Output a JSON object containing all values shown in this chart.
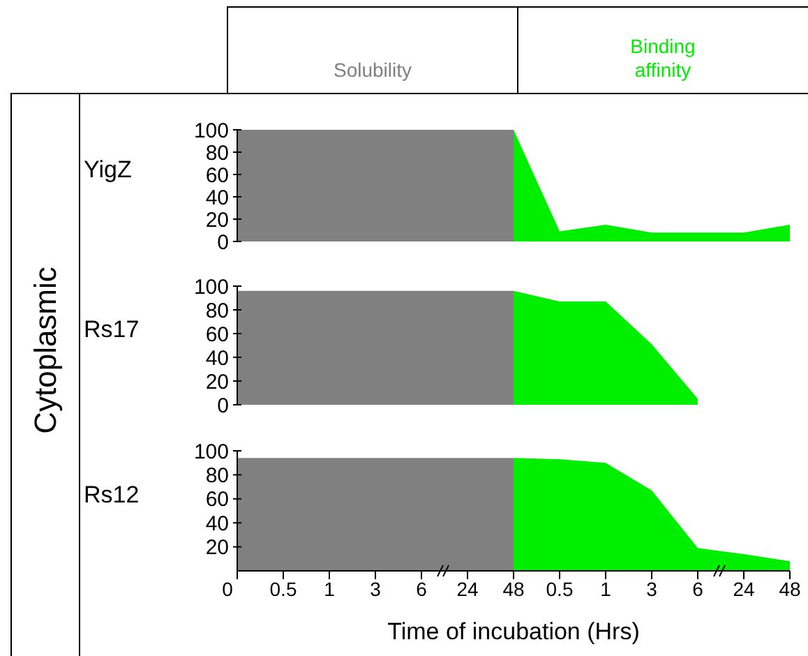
{
  "chart_data": [
    {
      "type": "area",
      "title": "YigZ",
      "annotations": [
        "Cytoplasmic"
      ],
      "legend": "top",
      "tick_labels": "y",
      "categories": [
        "0",
        "0.5",
        "1",
        "3",
        "6",
        "24",
        "48",
        "0.5",
        "1",
        "3",
        "6",
        "24",
        "48"
      ],
      "ylim": [
        0,
        100
      ],
      "yticks": [
        0,
        20,
        40,
        60,
        80,
        100
      ],
      "series": [
        {
          "name": "Solubility",
          "color": "#808080",
          "values": [
            100,
            100,
            100,
            100,
            100,
            100,
            100,
            null,
            null,
            null,
            null,
            null,
            null
          ]
        },
        {
          "name": "Binding affinity",
          "color": "#00ee00",
          "values": [
            null,
            null,
            null,
            null,
            null,
            null,
            100,
            9,
            15,
            8,
            8,
            8,
            15
          ]
        }
      ]
    },
    {
      "type": "area",
      "title": "Rs17",
      "tick_labels": "y",
      "categories": [
        "0",
        "0.5",
        "1",
        "3",
        "6",
        "24",
        "48",
        "0.5",
        "1",
        "3",
        "6",
        "24",
        "48"
      ],
      "ylim": [
        0,
        100
      ],
      "yticks": [
        0,
        20,
        40,
        60,
        80,
        100
      ],
      "series": [
        {
          "color": "#808080",
          "values": [
            96,
            96,
            96,
            96,
            96,
            96,
            96,
            null,
            null,
            null,
            null,
            null,
            null
          ]
        },
        {
          "color": "#00ee00",
          "values": [
            null,
            null,
            null,
            null,
            null,
            null,
            96,
            87,
            87,
            51,
            5,
            null,
            null
          ]
        }
      ]
    },
    {
      "type": "area",
      "title": "Rs12",
      "xlabel": "Time of incubation (Hrs)",
      "categories": [
        "0",
        "0.5",
        "1",
        "3",
        "6",
        "24",
        "48",
        "0.5",
        "1",
        "3",
        "6",
        "24",
        "48"
      ],
      "ylim": [
        0,
        100
      ],
      "yticks": [
        20,
        40,
        60,
        80,
        100
      ],
      "series": [
        {
          "color": "#808080",
          "values": [
            94,
            94,
            94,
            94,
            94,
            94,
            94,
            null,
            null,
            null,
            null,
            null,
            null
          ]
        },
        {
          "color": "#00ee00",
          "values": [
            null,
            null,
            null,
            null,
            null,
            null,
            94,
            93,
            90,
            67,
            19,
            14,
            8
          ]
        }
      ]
    }
  ]
}
